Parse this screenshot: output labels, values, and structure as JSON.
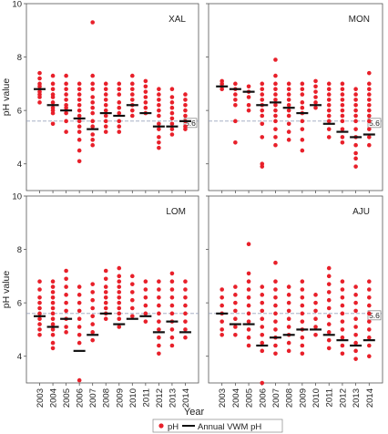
{
  "figure": {
    "xlabel": "Year",
    "legend": {
      "placement": "bottom-center",
      "point_label": "pH",
      "line_label": "Annual VWM pH"
    }
  },
  "chart_data": [
    {
      "panel": "XAL",
      "type": "scatter",
      "ylabel": "pH value",
      "ylim": [
        3,
        10
      ],
      "yticks": [
        4,
        6,
        8,
        10
      ],
      "reference_line": {
        "value": 5.6,
        "label": "5.6"
      },
      "years": [
        2003,
        2004,
        2005,
        2006,
        2007,
        2008,
        2009,
        2010,
        2011,
        2012,
        2013,
        2014
      ],
      "vwm": [
        6.8,
        6.2,
        6.0,
        5.7,
        5.3,
        5.9,
        5.8,
        6.2,
        5.9,
        5.4,
        5.4,
        5.6
      ],
      "points": [
        [
          7.4,
          7.2,
          7.0,
          6.9,
          6.8,
          6.7,
          6.6,
          6.5,
          6.3
        ],
        [
          7.3,
          7.0,
          6.8,
          6.6,
          6.5,
          6.3,
          6.1,
          6.0,
          5.9,
          5.5
        ],
        [
          7.3,
          7.0,
          6.8,
          6.6,
          6.4,
          6.2,
          6.1,
          6.0,
          5.9,
          5.6,
          5.2
        ],
        [
          7.0,
          6.8,
          6.6,
          6.4,
          6.2,
          6.0,
          5.8,
          5.6,
          5.4,
          5.2,
          4.9,
          4.5,
          4.1
        ],
        [
          9.3,
          7.3,
          7.0,
          6.8,
          6.5,
          6.3,
          6.1,
          5.9,
          5.6,
          5.4,
          5.1,
          4.9,
          4.7
        ],
        [
          7.0,
          6.8,
          6.6,
          6.4,
          6.2,
          6.0,
          5.8,
          5.6,
          5.4,
          5.2
        ],
        [
          7.0,
          6.8,
          6.6,
          6.3,
          6.1,
          5.9,
          5.6,
          5.4,
          5.2
        ],
        [
          7.3,
          7.0,
          6.8,
          6.6,
          6.4,
          6.2,
          6.0,
          5.8
        ],
        [
          7.1,
          6.9,
          6.7,
          6.5,
          6.3,
          6.1,
          5.9
        ],
        [
          6.8,
          6.6,
          6.4,
          6.2,
          6.0,
          5.8,
          5.5,
          5.3,
          5.0,
          4.8,
          4.6
        ],
        [
          6.8,
          6.5,
          6.3,
          6.1,
          5.9,
          5.7,
          5.5,
          5.3,
          5.1
        ],
        [
          6.6,
          6.4,
          6.2,
          6.0,
          5.8,
          5.6,
          5.4,
          5.3
        ]
      ]
    },
    {
      "panel": "MON",
      "type": "scatter",
      "ylabel": "",
      "ylim": [
        3,
        10
      ],
      "yticks": [
        4,
        6,
        8,
        10
      ],
      "reference_line": {
        "value": 5.6,
        "label": "5.6"
      },
      "years": [
        2003,
        2004,
        2005,
        2006,
        2007,
        2008,
        2009,
        2010,
        2011,
        2012,
        2013,
        2014
      ],
      "vwm": [
        6.9,
        6.8,
        6.7,
        6.2,
        6.3,
        6.1,
        5.9,
        6.2,
        5.5,
        5.2,
        5.0,
        5.1
      ],
      "points": [
        [
          7.1,
          7.0,
          6.9,
          6.8
        ],
        [
          7.0,
          6.8,
          6.6,
          6.4,
          6.2,
          5.6,
          4.8
        ],
        [
          6.9,
          6.7,
          6.5,
          6.2,
          6.0
        ],
        [
          7.0,
          6.8,
          6.6,
          6.4,
          6.2,
          6.0,
          5.8,
          5.5,
          5.0,
          4.0,
          3.9
        ],
        [
          7.9,
          7.3,
          7.0,
          6.8,
          6.6,
          6.4,
          6.2,
          6.0,
          5.8,
          5.6,
          5.3,
          5.0,
          4.7
        ],
        [
          7.0,
          6.8,
          6.6,
          6.4,
          6.2,
          6.0,
          5.8,
          5.5,
          5.2,
          4.9
        ],
        [
          7.0,
          6.8,
          6.6,
          6.3,
          6.1,
          5.9,
          5.6,
          5.3,
          4.9,
          4.5
        ],
        [
          7.1,
          6.9,
          6.7,
          6.5,
          6.3,
          6.1
        ],
        [
          7.0,
          6.8,
          6.6,
          6.4,
          6.2,
          6.0,
          5.8,
          5.6,
          5.3,
          5.0
        ],
        [
          7.0,
          6.8,
          6.6,
          6.4,
          6.2,
          6.0,
          5.8,
          5.6,
          5.3,
          5.0,
          4.8
        ],
        [
          6.8,
          6.6,
          6.4,
          6.2,
          6.0,
          5.8,
          5.6,
          5.3,
          5.0,
          4.7,
          4.4,
          4.2,
          3.9
        ],
        [
          7.4,
          7.0,
          6.8,
          6.6,
          6.4,
          6.2,
          6.0,
          5.8,
          5.6,
          5.3,
          5.0,
          4.7
        ]
      ]
    },
    {
      "panel": "LOM",
      "type": "scatter",
      "ylabel": "pH value",
      "ylim": [
        3,
        10
      ],
      "yticks": [
        4,
        6,
        8,
        10
      ],
      "reference_line": {
        "value": 5.6,
        "label": ""
      },
      "years": [
        2003,
        2004,
        2005,
        2006,
        2007,
        2008,
        2009,
        2010,
        2011,
        2012,
        2013,
        2014
      ],
      "vwm": [
        5.5,
        5.1,
        5.4,
        4.2,
        4.8,
        5.6,
        5.2,
        5.4,
        5.5,
        4.9,
        5.3,
        4.9
      ],
      "points": [
        [
          6.8,
          6.5,
          6.2,
          6.0,
          5.8,
          5.6,
          5.4,
          5.2,
          5.0,
          4.8
        ],
        [
          6.8,
          6.6,
          6.4,
          6.2,
          6.0,
          5.8,
          5.6,
          5.4,
          5.2,
          5.0,
          4.8,
          4.5,
          4.3
        ],
        [
          7.2,
          6.9,
          6.6,
          6.3,
          6.0,
          5.7,
          5.4,
          5.1,
          4.9
        ],
        [
          6.6,
          6.3,
          6.0,
          5.7,
          5.4,
          5.1,
          4.8,
          4.5,
          3.1
        ],
        [
          6.7,
          6.4,
          6.1,
          5.8,
          5.5,
          5.2,
          4.9,
          4.6
        ],
        [
          7.2,
          6.9,
          6.6,
          6.4,
          6.2,
          6.0,
          5.8,
          5.6,
          5.4
        ],
        [
          7.3,
          7.0,
          6.8,
          6.6,
          6.4,
          6.2,
          6.0,
          5.8,
          5.6,
          5.4,
          5.1
        ],
        [
          7.0,
          6.7,
          6.4,
          6.1,
          5.8,
          5.5
        ],
        [
          6.8,
          6.5,
          6.2,
          5.9,
          5.6,
          5.3
        ],
        [
          6.8,
          6.5,
          6.2,
          5.9,
          5.6,
          5.3,
          5.0,
          4.7,
          4.4,
          4.1
        ],
        [
          7.1,
          6.8,
          6.5,
          6.2,
          5.9,
          5.6,
          5.3,
          5.0,
          4.7,
          4.4
        ],
        [
          6.8,
          6.5,
          6.2,
          5.9,
          5.6,
          5.3,
          5.0,
          4.7
        ]
      ]
    },
    {
      "panel": "AJU",
      "type": "scatter",
      "ylabel": "",
      "ylim": [
        3,
        10
      ],
      "yticks": [
        4,
        6,
        8,
        10
      ],
      "reference_line": {
        "value": 5.6,
        "label": "5.6"
      },
      "years": [
        2003,
        2004,
        2005,
        2006,
        2007,
        2008,
        2009,
        2010,
        2011,
        2012,
        2013,
        2014
      ],
      "vwm": [
        5.6,
        5.2,
        5.2,
        4.4,
        4.7,
        4.8,
        5.0,
        5.0,
        4.8,
        4.6,
        4.4,
        4.6
      ],
      "points": [
        [
          6.5,
          6.2,
          5.9,
          5.6,
          5.3,
          5.0,
          4.8
        ],
        [
          6.6,
          6.3,
          6.0,
          5.7,
          5.4,
          5.1,
          4.8
        ],
        [
          8.2,
          7.1,
          6.8,
          6.5,
          6.2,
          5.9,
          5.6,
          5.3,
          5.0,
          4.7,
          4.4
        ],
        [
          6.6,
          6.3,
          6.0,
          5.7,
          5.4,
          5.1,
          4.8,
          4.5,
          4.2,
          3.0
        ],
        [
          7.5,
          6.8,
          6.5,
          6.2,
          5.9,
          5.6,
          5.3,
          5.0,
          4.7,
          4.4,
          4.1
        ],
        [
          6.6,
          6.3,
          6.0,
          5.7,
          5.4,
          5.1,
          4.8,
          4.5,
          4.2
        ],
        [
          6.8,
          6.5,
          6.2,
          5.9,
          5.6,
          5.3,
          5.0,
          4.7,
          4.4,
          4.1
        ],
        [
          6.3,
          6.0,
          5.7,
          5.4,
          5.1,
          4.8
        ],
        [
          7.3,
          7.0,
          6.7,
          6.4,
          6.1,
          5.8,
          5.5,
          5.2,
          4.9,
          4.6,
          4.3
        ],
        [
          6.8,
          6.5,
          6.2,
          5.9,
          5.6,
          5.3,
          5.0,
          4.7,
          4.4,
          4.1
        ],
        [
          6.6,
          6.3,
          6.0,
          5.7,
          5.4,
          5.1,
          4.8,
          4.5,
          4.2,
          3.9
        ],
        [
          6.8,
          6.5,
          6.2,
          5.9,
          5.6,
          5.3,
          5.0,
          4.7,
          4.4,
          4.0
        ]
      ]
    }
  ]
}
